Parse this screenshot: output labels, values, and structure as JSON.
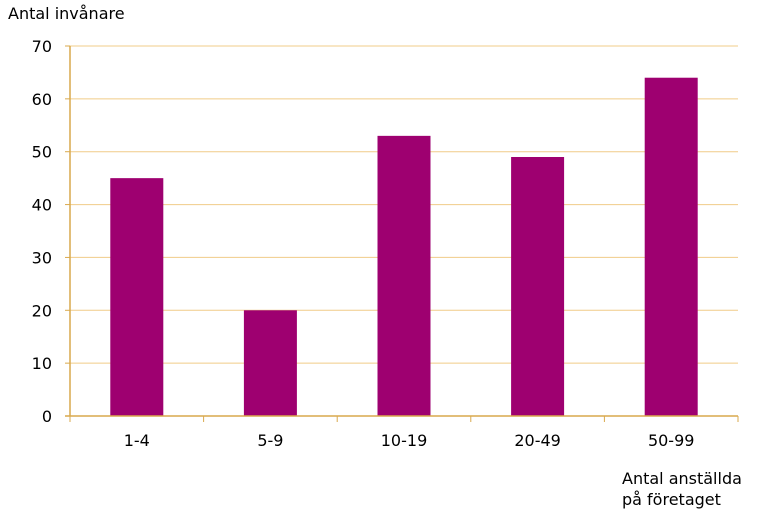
{
  "chart_data": {
    "type": "bar",
    "categories": [
      "1-4",
      "5-9",
      "10-19",
      "20-49",
      "50-99"
    ],
    "values": [
      45,
      20,
      53,
      49,
      64
    ],
    "ylabel": "Antal invånare",
    "xlabel": "Antal anställda\npå företaget",
    "ylim": [
      0,
      70
    ],
    "yticks": [
      0,
      10,
      20,
      30,
      40,
      50,
      60,
      70
    ],
    "grid": true,
    "colors": {
      "bar": "#9e0070",
      "grid": "#f0cc88",
      "axis": "#d9a94d"
    }
  }
}
